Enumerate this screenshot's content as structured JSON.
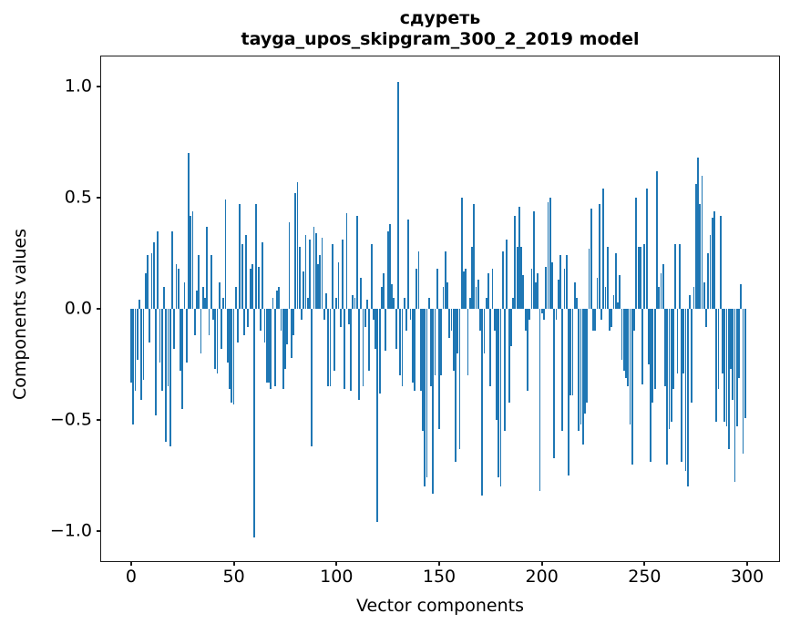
{
  "figure": {
    "background": "#ffffff",
    "text_color": "#000000"
  },
  "chart_data": {
    "type": "bar",
    "title": "сдуреть",
    "subtitle": "tayga_upos_skipgram_300_2_2019 model",
    "xlabel": "Vector components",
    "ylabel": "Components values",
    "bar_color": "#1f77b4",
    "grid": false,
    "legend": "none",
    "x_start": 0,
    "bar_width": 0.8,
    "xlim": [
      -14.6,
      315.5
    ],
    "ylim": [
      -1.135,
      1.135
    ],
    "x_ticks": [
      {
        "value": 0,
        "label": "0"
      },
      {
        "value": 50,
        "label": "50"
      },
      {
        "value": 100,
        "label": "100"
      },
      {
        "value": 150,
        "label": "150"
      },
      {
        "value": 200,
        "label": "200"
      },
      {
        "value": 250,
        "label": "250"
      },
      {
        "value": 300,
        "label": "300"
      }
    ],
    "y_ticks": [
      {
        "value": 1.0,
        "label": "1.0"
      },
      {
        "value": 0.5,
        "label": "0.5"
      },
      {
        "value": 0.0,
        "label": "0.0"
      },
      {
        "value": -0.5,
        "label": "−0.5"
      },
      {
        "value": -1.0,
        "label": "−1.0"
      }
    ],
    "values": [
      -0.33,
      -0.52,
      -0.37,
      -0.23,
      0.04,
      -0.41,
      -0.32,
      0.16,
      0.24,
      -0.15,
      0.25,
      0.3,
      -0.48,
      0.35,
      -0.24,
      -0.37,
      0.1,
      -0.6,
      -0.35,
      -0.62,
      0.35,
      -0.18,
      0.2,
      0.18,
      -0.28,
      -0.45,
      0.12,
      -0.24,
      0.7,
      0.42,
      0.44,
      -0.12,
      0.08,
      0.24,
      -0.2,
      0.1,
      0.05,
      0.37,
      -0.12,
      0.24,
      -0.05,
      -0.27,
      -0.29,
      0.12,
      -0.18,
      0.05,
      0.49,
      -0.24,
      -0.36,
      -0.42,
      -0.43,
      0.1,
      -0.15,
      0.47,
      0.29,
      -0.12,
      0.33,
      -0.08,
      0.18,
      0.2,
      -1.03,
      0.47,
      0.19,
      -0.1,
      0.3,
      -0.15,
      -0.33,
      -0.33,
      -0.36,
      0.05,
      -0.35,
      0.08,
      0.1,
      -0.1,
      -0.36,
      -0.27,
      -0.16,
      0.39,
      -0.22,
      -0.12,
      0.52,
      0.57,
      0.28,
      -0.05,
      0.17,
      0.33,
      0.05,
      0.31,
      -0.62,
      0.37,
      0.34,
      0.2,
      0.24,
      0.32,
      -0.05,
      0.07,
      -0.35,
      -0.35,
      0.29,
      -0.28,
      0.05,
      0.21,
      -0.08,
      0.31,
      -0.36,
      0.43,
      -0.07,
      -0.37,
      0.06,
      0.05,
      0.42,
      -0.41,
      0.14,
      -0.35,
      -0.08,
      0.04,
      -0.28,
      0.29,
      -0.05,
      -0.18,
      -0.96,
      -0.38,
      0.1,
      0.16,
      -0.19,
      0.35,
      0.38,
      0.11,
      0.05,
      -0.18,
      1.02,
      -0.3,
      -0.35,
      0.05,
      -0.1,
      0.4,
      -0.05,
      -0.33,
      -0.37,
      0.18,
      0.26,
      -0.37,
      -0.55,
      -0.8,
      -0.76,
      0.05,
      -0.35,
      -0.83,
      -0.3,
      0.18,
      -0.54,
      -0.3,
      0.1,
      0.26,
      0.12,
      -0.13,
      -0.1,
      -0.28,
      -0.69,
      -0.2,
      -0.63,
      0.5,
      0.17,
      0.18,
      -0.3,
      0.05,
      0.28,
      0.47,
      0.1,
      0.13,
      -0.1,
      -0.84,
      -0.2,
      0.05,
      0.16,
      -0.35,
      0.18,
      -0.1,
      -0.5,
      -0.76,
      -0.8,
      0.26,
      -0.55,
      0.31,
      -0.42,
      -0.17,
      0.05,
      0.42,
      0.28,
      0.46,
      0.28,
      0.15,
      -0.1,
      -0.37,
      -0.05,
      0.18,
      0.44,
      0.12,
      0.16,
      -0.82,
      -0.02,
      -0.05,
      0.19,
      0.48,
      0.5,
      0.21,
      -0.67,
      -0.05,
      0.13,
      0.24,
      -0.55,
      0.18,
      0.24,
      -0.75,
      -0.39,
      -0.39,
      0.12,
      0.05,
      -0.55,
      -0.52,
      -0.61,
      -0.47,
      -0.42,
      0.27,
      0.45,
      -0.1,
      -0.1,
      0.14,
      0.47,
      -0.05,
      0.54,
      0.1,
      0.28,
      -0.1,
      -0.08,
      0.06,
      0.25,
      0.03,
      0.15,
      -0.23,
      -0.28,
      -0.31,
      -0.35,
      -0.52,
      -0.7,
      -0.1,
      0.5,
      0.28,
      0.28,
      -0.34,
      0.29,
      0.54,
      -0.25,
      -0.69,
      -0.42,
      -0.36,
      0.62,
      0.1,
      0.16,
      0.2,
      -0.35,
      -0.7,
      -0.54,
      -0.51,
      -0.36,
      0.29,
      -0.29,
      0.29,
      -0.69,
      -0.29,
      -0.73,
      -0.8,
      0.06,
      -0.42,
      0.1,
      0.56,
      0.68,
      0.47,
      0.6,
      0.12,
      -0.08,
      0.25,
      0.33,
      0.41,
      0.44,
      -0.51,
      -0.36,
      0.42,
      -0.29,
      -0.51,
      -0.53,
      -0.63,
      -0.27,
      -0.41,
      -0.78,
      -0.53,
      -0.31,
      0.11,
      -0.65,
      -0.49
    ]
  }
}
